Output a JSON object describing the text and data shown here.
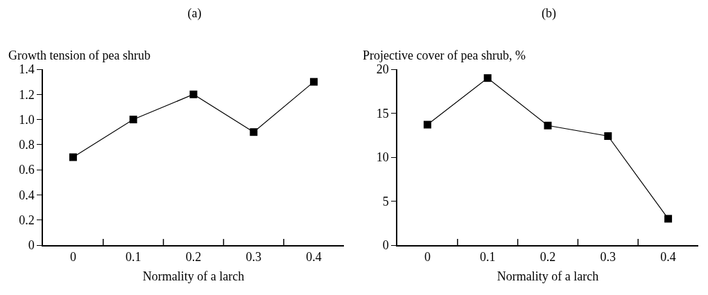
{
  "chart_data": [
    {
      "type": "line",
      "title": "(a)",
      "ylabel": "Growth tension of pea shrub",
      "xlabel": "Normality of a larch",
      "categories": [
        "0",
        "0.1",
        "0.2",
        "0.3",
        "0.4"
      ],
      "series": [
        {
          "color": "#000000",
          "values": [
            0.7,
            1.0,
            1.2,
            0.9,
            1.3
          ]
        }
      ],
      "ylim": [
        0,
        1.4
      ],
      "yticks": [
        {
          "value": 0,
          "label": "0"
        },
        0.2,
        0.4,
        0.6,
        0.8,
        {
          "value": 1,
          "label": "1.0"
        },
        1.2,
        1.4
      ],
      "marker": "square",
      "line_style": "solid",
      "grid": false
    },
    {
      "type": "line",
      "title": "(b)",
      "ylabel": "Projective cover of pea shrub, %",
      "xlabel": "Normality of a larch",
      "categories": [
        "0",
        "0.1",
        "0.2",
        "0.3",
        "0.4"
      ],
      "series": [
        {
          "color": "#000000",
          "values": [
            13.7,
            19.0,
            13.6,
            12.4,
            3.0
          ]
        }
      ],
      "ylim": [
        0,
        20
      ],
      "yticks": [
        0,
        5,
        10,
        15,
        20
      ],
      "marker": "square",
      "line_style": "solid",
      "grid": false
    }
  ]
}
